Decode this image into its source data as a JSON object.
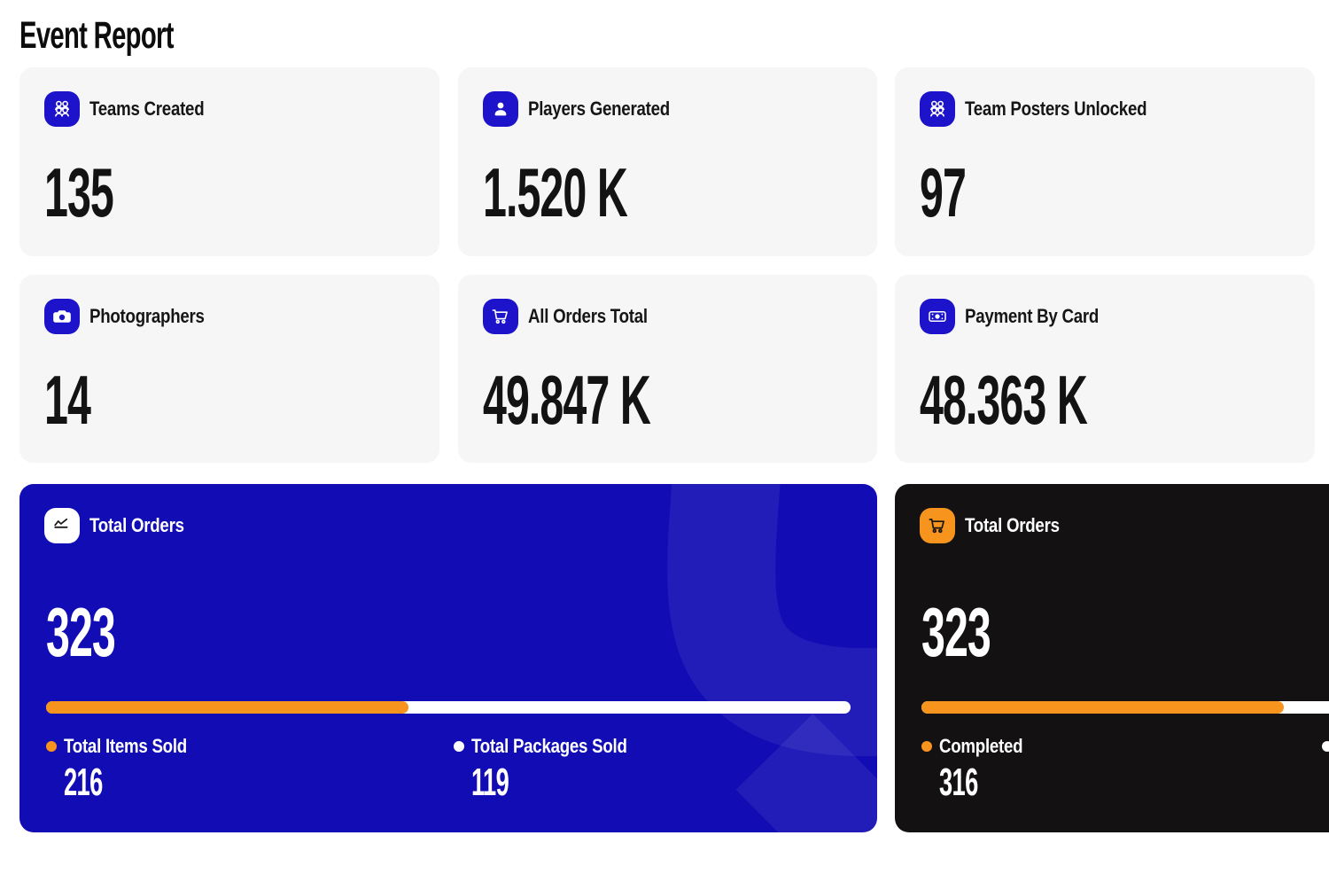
{
  "page": {
    "title": "Event Report"
  },
  "colors": {
    "accent_blue": "#1c13cb",
    "card_blue": "#120cb4",
    "card_dark": "#131111",
    "card_light": "#f6f6f6",
    "orange": "#f7941d",
    "white": "#ffffff"
  },
  "stat_cards": [
    {
      "label": "Teams Created",
      "value": "135",
      "icon": "team-icon"
    },
    {
      "label": "Players Generated",
      "value": "1.520 K",
      "icon": "player-icon"
    },
    {
      "label": "Team Posters Unlocked",
      "value": "97",
      "icon": "team-icon"
    },
    {
      "label": "Photographers",
      "value": "14",
      "icon": "camera-icon"
    },
    {
      "label": "All Orders Total",
      "value": "49.847 K",
      "icon": "cart-icon"
    },
    {
      "label": "Payment By Card",
      "value": "48.363 K",
      "icon": "banknote-icon"
    }
  ],
  "orders_card_blue": {
    "label": "Total Orders",
    "value": "323",
    "icon": "chart-line-icon",
    "progress_percent": 45,
    "legend": [
      {
        "label": "Total Items Sold",
        "value": "216",
        "dot_color": "#f7941d"
      },
      {
        "label": "Total Packages Sold",
        "value": "119",
        "dot_color": "#ffffff"
      }
    ]
  },
  "orders_card_dark": {
    "label": "Total Orders",
    "value": "323",
    "icon": "cart-icon",
    "progress_percent": 45,
    "legend": [
      {
        "label": "Completed",
        "value": "316",
        "dot_color": "#f7941d"
      }
    ]
  }
}
